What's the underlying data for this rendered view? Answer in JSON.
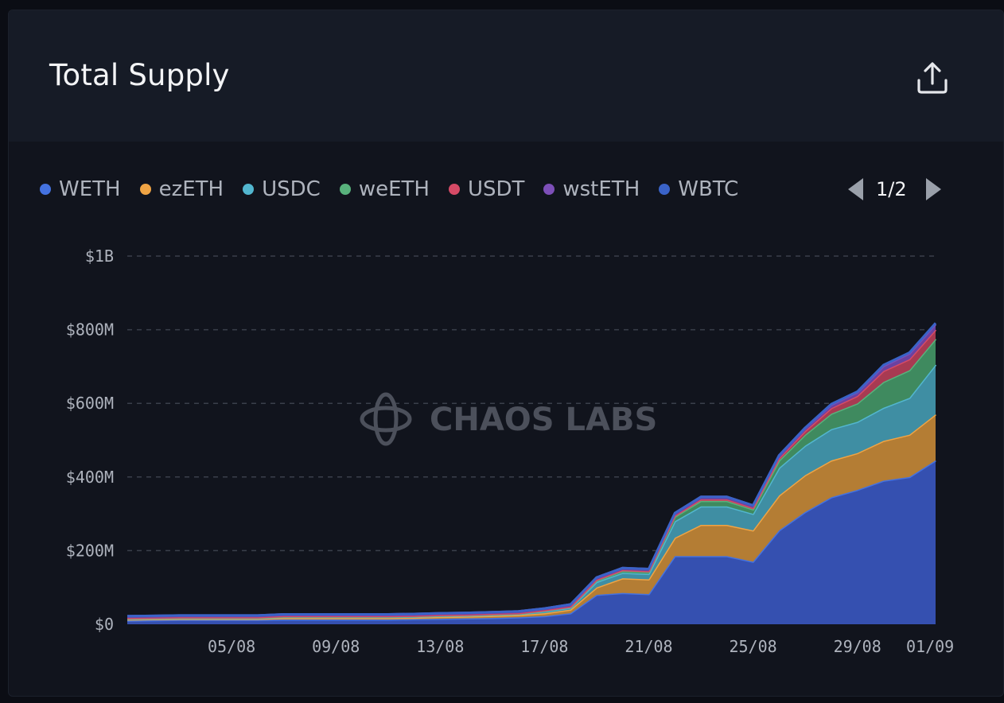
{
  "header": {
    "title": "Total Supply",
    "export_icon": "share-upload-icon"
  },
  "legend": {
    "items": [
      {
        "label": "WETH",
        "color": "#4472e0"
      },
      {
        "label": "ezETH",
        "color": "#f0a444"
      },
      {
        "label": "USDC",
        "color": "#52b6cf"
      },
      {
        "label": "weETH",
        "color": "#58b27c"
      },
      {
        "label": "USDT",
        "color": "#d64a66"
      },
      {
        "label": "wstETH",
        "color": "#7d4fb8"
      },
      {
        "label": "WBTC",
        "color": "#3a63c8"
      }
    ],
    "page": "1/2"
  },
  "watermark": {
    "text": "CHAOS LABS"
  },
  "chart_data": {
    "type": "area",
    "stacked": true,
    "title": "Total Supply",
    "xlabel": "",
    "ylabel": "",
    "ylim": [
      0,
      1000000000
    ],
    "y_ticks": [
      0,
      200000000,
      400000000,
      600000000,
      800000000,
      1000000000
    ],
    "y_tick_labels": [
      "$0",
      "$200M",
      "$400M",
      "$600M",
      "$800M",
      "$1B"
    ],
    "x_tick_labels": [
      "05/08",
      "09/08",
      "13/08",
      "17/08",
      "21/08",
      "25/08",
      "29/08",
      "01/09"
    ],
    "x": [
      "01/08",
      "02/08",
      "03/08",
      "04/08",
      "05/08",
      "06/08",
      "07/08",
      "08/08",
      "09/08",
      "10/08",
      "11/08",
      "12/08",
      "13/08",
      "14/08",
      "15/08",
      "16/08",
      "17/08",
      "18/08",
      "19/08",
      "20/08",
      "21/08",
      "22/08",
      "23/08",
      "24/08",
      "25/08",
      "26/08",
      "27/08",
      "28/08",
      "29/08",
      "30/08",
      "31/08",
      "01/09"
    ],
    "grid": true,
    "legend_position": "top-left",
    "series": [
      {
        "name": "WETH",
        "color": "#3550b0",
        "values": [
          10,
          11,
          12,
          12,
          12,
          12,
          13,
          13,
          13,
          13,
          13,
          14,
          15,
          16,
          17,
          19,
          22,
          30,
          80,
          85,
          82,
          185,
          185,
          185,
          170,
          255,
          305,
          345,
          365,
          390,
          400,
          445
        ]
      },
      {
        "name": "ezETH",
        "color": "#b47d34",
        "values": [
          3,
          3,
          3,
          3,
          3,
          3,
          4,
          4,
          4,
          4,
          4,
          4,
          5,
          5,
          6,
          6,
          8,
          10,
          20,
          40,
          40,
          50,
          85,
          85,
          85,
          95,
          100,
          100,
          100,
          108,
          115,
          125
        ]
      },
      {
        "name": "USDC",
        "color": "#3f8ea3",
        "values": [
          2,
          2,
          2,
          2,
          2,
          2,
          3,
          3,
          3,
          3,
          3,
          3,
          3,
          3,
          3,
          3,
          5,
          5,
          15,
          15,
          15,
          45,
          50,
          50,
          45,
          75,
          80,
          85,
          85,
          90,
          100,
          135
        ]
      },
      {
        "name": "weETH",
        "color": "#3f8a5f",
        "values": [
          1,
          1,
          1,
          1,
          1,
          1,
          1,
          1,
          1,
          1,
          1,
          1,
          1,
          1,
          1,
          1,
          2,
          2,
          4,
          5,
          5,
          12,
          15,
          15,
          12,
          20,
          30,
          42,
          50,
          70,
          75,
          70
        ]
      },
      {
        "name": "USDT",
        "color": "#a83a52",
        "values": [
          1,
          1,
          1,
          1,
          1,
          1,
          1,
          1,
          1,
          1,
          1,
          1,
          1,
          1,
          1,
          1,
          1,
          1,
          2,
          2,
          2,
          3,
          4,
          4,
          4,
          6,
          10,
          15,
          20,
          30,
          30,
          25
        ]
      },
      {
        "name": "wstETH",
        "color": "#6a42a0",
        "values": [
          5,
          5,
          5,
          5,
          5,
          5,
          5,
          5,
          5,
          5,
          5,
          5,
          5,
          5,
          5,
          5,
          5,
          6,
          6,
          6,
          6,
          7,
          7,
          7,
          7,
          8,
          8,
          9,
          10,
          13,
          15,
          15
        ]
      },
      {
        "name": "WBTC",
        "color": "#2f52b0",
        "values": [
          0,
          0,
          0,
          0,
          0,
          0,
          0,
          0,
          0,
          0,
          0,
          0,
          0,
          0,
          0,
          0,
          0,
          0,
          0,
          0,
          0,
          0,
          0,
          0,
          0,
          0,
          1,
          2,
          2,
          3,
          3,
          3
        ]
      }
    ],
    "value_unit": "millions USD"
  }
}
